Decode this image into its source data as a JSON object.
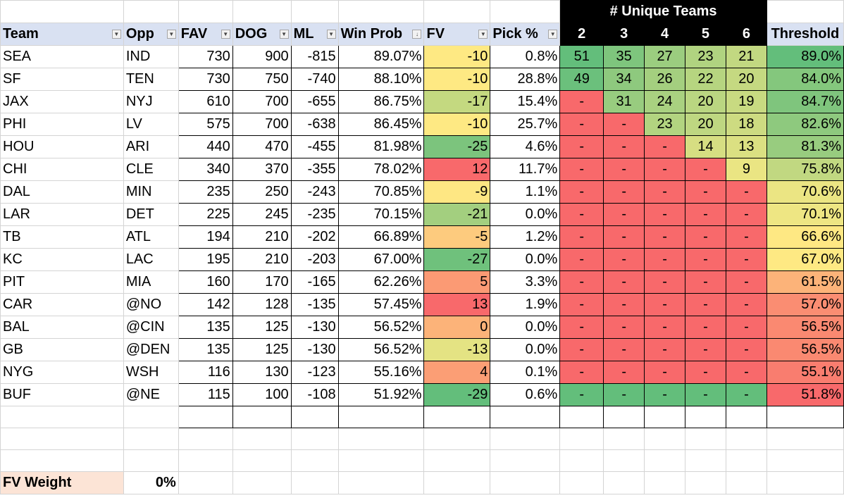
{
  "spreadsheet": {
    "group_header": "# Unique Teams",
    "columns": {
      "team": "Team",
      "opp": "Opp",
      "fav": "FAV",
      "dog": "DOG",
      "ml": "ML",
      "win_prob": "Win Prob",
      "fv": "FV",
      "pick": "Pick %",
      "u2": "2",
      "u3": "3",
      "u4": "4",
      "u5": "5",
      "u6": "6",
      "threshold": "Threshold"
    },
    "colors": {
      "header_fill": "#d9e1f2",
      "group_header_fill": "#000000",
      "green": "#63be7b",
      "yellow": "#ffeb84",
      "red": "#f8696b",
      "fv_weight_fill": "#fce4d6"
    },
    "rows": [
      {
        "team": "SEA",
        "opp": "IND",
        "fav": "730",
        "dog": "900",
        "ml": "-815",
        "win_prob": "89.07%",
        "fv": "-10",
        "pick": "0.8%",
        "u2": "51",
        "u3": "35",
        "u4": "27",
        "u5": "23",
        "u6": "21",
        "threshold": "89.0%",
        "fv_color": "#fee983",
        "u_colors": [
          "#63be7b",
          "#7ec57d",
          "#9bcd7f",
          "#b0d380",
          "#c2d881"
        ],
        "th_color": "#63be7b"
      },
      {
        "team": "SF",
        "opp": "TEN",
        "fav": "730",
        "dog": "750",
        "ml": "-740",
        "win_prob": "88.10%",
        "fv": "-10",
        "pick": "28.8%",
        "u2": "49",
        "u3": "34",
        "u4": "26",
        "u5": "22",
        "u6": "20",
        "threshold": "84.0%",
        "fv_color": "#fee983",
        "u_colors": [
          "#6bc07c",
          "#8ec97e",
          "#a4cf7f",
          "#b6d580",
          "#c5d981"
        ],
        "th_color": "#84c77d"
      },
      {
        "team": "JAX",
        "opp": "NYJ",
        "fav": "610",
        "dog": "700",
        "ml": "-655",
        "win_prob": "86.75%",
        "fv": "-17",
        "pick": "15.4%",
        "u2": "-",
        "u3": "31",
        "u4": "24",
        "u5": "20",
        "u6": "19",
        "threshold": "84.7%",
        "fv_color": "#c4d980",
        "u_colors": [
          "#f8696b",
          "#98cc7f",
          "#a9d180",
          "#bad681",
          "#c8da81"
        ],
        "th_color": "#7fc57d"
      },
      {
        "team": "PHI",
        "opp": "LV",
        "fav": "575",
        "dog": "700",
        "ml": "-638",
        "win_prob": "86.45%",
        "fv": "-10",
        "pick": "25.7%",
        "u2": "-",
        "u3": "-",
        "u4": "23",
        "u5": "20",
        "u6": "18",
        "threshold": "82.6%",
        "fv_color": "#fee983",
        "u_colors": [
          "#f8696b",
          "#f8696b",
          "#b2d480",
          "#bed781",
          "#cddb81"
        ],
        "th_color": "#8ec97e"
      },
      {
        "team": "HOU",
        "opp": "ARI",
        "fav": "440",
        "dog": "470",
        "ml": "-455",
        "win_prob": "81.98%",
        "fv": "-25",
        "pick": "4.6%",
        "u2": "-",
        "u3": "-",
        "u4": "-",
        "u5": "14",
        "u6": "13",
        "threshold": "81.3%",
        "fv_color": "#7cc47d",
        "u_colors": [
          "#f8696b",
          "#f8696b",
          "#f8696b",
          "#d6de82",
          "#dbe082"
        ],
        "th_color": "#98cc7f"
      },
      {
        "team": "CHI",
        "opp": "CLE",
        "fav": "340",
        "dog": "370",
        "ml": "-355",
        "win_prob": "78.02%",
        "fv": "12",
        "pick": "11.7%",
        "u2": "-",
        "u3": "-",
        "u4": "-",
        "u5": "-",
        "u6": "9",
        "threshold": "75.8%",
        "fv_color": "#f8696b",
        "u_colors": [
          "#f8696b",
          "#f8696b",
          "#f8696b",
          "#f8696b",
          "#eae583"
        ],
        "th_color": "#c1d881"
      },
      {
        "team": "DAL",
        "opp": "MIN",
        "fav": "235",
        "dog": "250",
        "ml": "-243",
        "win_prob": "70.85%",
        "fv": "-9",
        "pick": "1.1%",
        "u2": "-",
        "u3": "-",
        "u4": "-",
        "u5": "-",
        "u6": "-",
        "threshold": "70.6%",
        "fv_color": "#fee783",
        "u_colors": [
          "#f8696b",
          "#f8696b",
          "#f8696b",
          "#f8696b",
          "#f8696b"
        ],
        "th_color": "#ebe583"
      },
      {
        "team": "LAR",
        "opp": "DET",
        "fav": "225",
        "dog": "245",
        "ml": "-235",
        "win_prob": "70.15%",
        "fv": "-21",
        "pick": "0.0%",
        "u2": "-",
        "u3": "-",
        "u4": "-",
        "u5": "-",
        "u6": "-",
        "threshold": "70.1%",
        "fv_color": "#a3cf7f",
        "u_colors": [
          "#f8696b",
          "#f8696b",
          "#f8696b",
          "#f8696b",
          "#f8696b"
        ],
        "th_color": "#eee683"
      },
      {
        "team": "TB",
        "opp": "ATL",
        "fav": "194",
        "dog": "210",
        "ml": "-202",
        "win_prob": "66.89%",
        "fv": "-5",
        "pick": "1.2%",
        "u2": "-",
        "u3": "-",
        "u4": "-",
        "u5": "-",
        "u6": "-",
        "threshold": "66.6%",
        "fv_color": "#fdcb7e",
        "u_colors": [
          "#f8696b",
          "#f8696b",
          "#f8696b",
          "#f8696b",
          "#f8696b"
        ],
        "th_color": "#fee883"
      },
      {
        "team": "KC",
        "opp": "LAC",
        "fav": "195",
        "dog": "210",
        "ml": "-203",
        "win_prob": "67.00%",
        "fv": "-27",
        "pick": "0.0%",
        "u2": "-",
        "u3": "-",
        "u4": "-",
        "u5": "-",
        "u6": "-",
        "threshold": "67.0%",
        "fv_color": "#6fc17c",
        "u_colors": [
          "#f8696b",
          "#f8696b",
          "#f8696b",
          "#f8696b",
          "#f8696b"
        ],
        "th_color": "#fee983"
      },
      {
        "team": "PIT",
        "opp": "MIA",
        "fav": "160",
        "dog": "170",
        "ml": "-165",
        "win_prob": "62.26%",
        "fv": "5",
        "pick": "3.3%",
        "u2": "-",
        "u3": "-",
        "u4": "-",
        "u5": "-",
        "u6": "-",
        "threshold": "61.5%",
        "fv_color": "#fb9a74",
        "u_colors": [
          "#f8696b",
          "#f8696b",
          "#f8696b",
          "#f8696b",
          "#f8696b"
        ],
        "th_color": "#fcb379"
      },
      {
        "team": "CAR",
        "opp": "@NO",
        "fav": "142",
        "dog": "128",
        "ml": "-135",
        "win_prob": "57.45%",
        "fv": "13",
        "pick": "1.9%",
        "u2": "-",
        "u3": "-",
        "u4": "-",
        "u5": "-",
        "u6": "-",
        "threshold": "57.0%",
        "fv_color": "#f8696b",
        "u_colors": [
          "#f8696b",
          "#f8696b",
          "#f8696b",
          "#f8696b",
          "#f8696b"
        ],
        "th_color": "#fa8d72"
      },
      {
        "team": "BAL",
        "opp": "@CIN",
        "fav": "135",
        "dog": "125",
        "ml": "-130",
        "win_prob": "56.52%",
        "fv": "0",
        "pick": "0.0%",
        "u2": "-",
        "u3": "-",
        "u4": "-",
        "u5": "-",
        "u6": "-",
        "threshold": "56.5%",
        "fv_color": "#fcb379",
        "u_colors": [
          "#f8696b",
          "#f8696b",
          "#f8696b",
          "#f8696b",
          "#f8696b"
        ],
        "th_color": "#fa8971"
      },
      {
        "team": "GB",
        "opp": "@DEN",
        "fav": "135",
        "dog": "125",
        "ml": "-130",
        "win_prob": "56.52%",
        "fv": "-13",
        "pick": "0.0%",
        "u2": "-",
        "u3": "-",
        "u4": "-",
        "u5": "-",
        "u6": "-",
        "threshold": "56.5%",
        "fv_color": "#e4e383",
        "u_colors": [
          "#f8696b",
          "#f8696b",
          "#f8696b",
          "#f8696b",
          "#f8696b"
        ],
        "th_color": "#fa8971"
      },
      {
        "team": "NYG",
        "opp": "WSH",
        "fav": "116",
        "dog": "130",
        "ml": "-123",
        "win_prob": "55.16%",
        "fv": "4",
        "pick": "0.1%",
        "u2": "-",
        "u3": "-",
        "u4": "-",
        "u5": "-",
        "u6": "-",
        "threshold": "55.1%",
        "fv_color": "#fb9e75",
        "u_colors": [
          "#f8696b",
          "#f8696b",
          "#f8696b",
          "#f8696b",
          "#f8696b"
        ],
        "th_color": "#f97d6f"
      },
      {
        "team": "BUF",
        "opp": "@NE",
        "fav": "115",
        "dog": "100",
        "ml": "-108",
        "win_prob": "51.92%",
        "fv": "-29",
        "pick": "0.6%",
        "u2": "-",
        "u3": "-",
        "u4": "-",
        "u5": "-",
        "u6": "-",
        "threshold": "51.8%",
        "fv_color": "#63be7b",
        "u_colors": [
          "#63be7b",
          "#63be7b",
          "#63be7b",
          "#63be7b",
          "#63be7b"
        ],
        "th_color": "#f8696b"
      }
    ],
    "fv_weight": {
      "label": "FV Weight",
      "value": "0%"
    }
  }
}
